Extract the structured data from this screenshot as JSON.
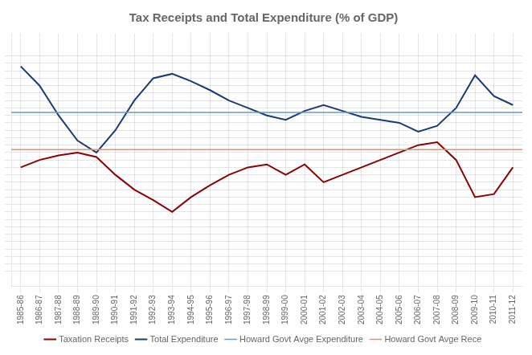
{
  "chart_data": {
    "type": "line",
    "title": "Tax Receipts and Total Expenditure (% of GDP)",
    "categories": [
      "1985-86",
      "1986-87",
      "1987-88",
      "1988-89",
      "1989-90",
      "1990-91",
      "1991-92",
      "1992-93",
      "1993-94",
      "1994-95",
      "1995-96",
      "1996-97",
      "1997-98",
      "1998-99",
      "1999-00",
      "2000-01",
      "2001-02",
      "2002-03",
      "2003-04",
      "2004-05",
      "2005-06",
      "2006-07",
      "2007-08",
      "2008-09",
      "2009-10",
      "2010-11",
      "2011-12"
    ],
    "series": [
      {
        "name": "Taxation Receipts",
        "color": "#8B0000",
        "values": [
          22.0,
          22.5,
          22.8,
          23.0,
          22.7,
          21.5,
          20.5,
          19.8,
          19.0,
          20.0,
          20.8,
          21.5,
          22.0,
          22.2,
          21.5,
          22.2,
          21.0,
          21.5,
          22.0,
          22.5,
          23.0,
          23.5,
          23.7,
          22.5,
          20.0,
          20.2,
          22.0
        ]
      },
      {
        "name": "Total Expenditure",
        "color": "#1B3A78",
        "values": [
          28.8,
          27.5,
          25.5,
          23.8,
          23.0,
          24.5,
          26.5,
          28.0,
          28.3,
          27.8,
          27.2,
          26.5,
          26.0,
          25.5,
          25.2,
          25.8,
          26.2,
          25.8,
          25.4,
          25.2,
          25.0,
          24.4,
          24.8,
          26.0,
          28.2,
          26.8,
          26.2
        ]
      },
      {
        "name": "Howard Govt Avge Expenditure",
        "color": "#6699CC",
        "type": "hline",
        "value": 25.7
      },
      {
        "name": "Howard Govt Avge Rece",
        "color": "#CC9988",
        "type": "hline",
        "value": 23.2
      }
    ],
    "ylim": [
      14,
      31
    ],
    "yticks": [
      15,
      15.5,
      16,
      16.5,
      17,
      17.5,
      18,
      18.5,
      19,
      19.5,
      20,
      20.5,
      21,
      21.5,
      22,
      22.5,
      23,
      23.5,
      24,
      24.5,
      25,
      25.5,
      26,
      26.5,
      27,
      27.5,
      28,
      28.5,
      29,
      29.5
    ],
    "tick_labels": "x",
    "grid": true,
    "legend": "bottom"
  }
}
